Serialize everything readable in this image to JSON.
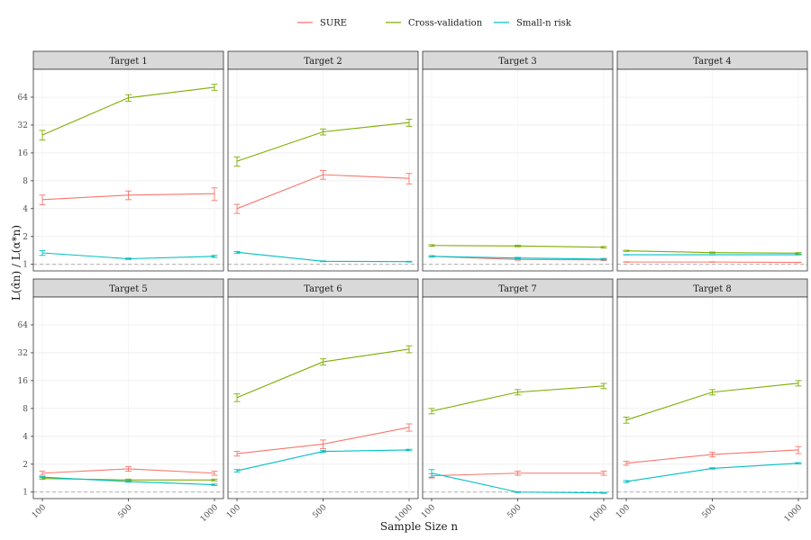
{
  "chart_data": {
    "type": "line",
    "facet_layout": "4 columns x 2 rows",
    "legend_position": "top",
    "xlabel": "Sample Size n",
    "ylabel": "L(α̂n) / L(α*n)",
    "y_scale": "log2",
    "ylim": [
      0.85,
      128
    ],
    "y_ticks": [
      1,
      2,
      4,
      8,
      16,
      32,
      64
    ],
    "y_tick_labels": [
      "1",
      "2",
      "4",
      "8",
      "16",
      "32",
      "64"
    ],
    "x_tick_labels": [
      "100",
      "500",
      "1000"
    ],
    "reference_line": 1,
    "series_names": [
      "SURE",
      "Cross-validation",
      "Small-n risk"
    ],
    "colors": {
      "SURE": "#F8766D",
      "Cross-validation": "#7CAE00",
      "Small-n risk": "#00BFC4"
    },
    "panels": [
      {
        "title": "Target 1",
        "x": [
          100,
          500,
          1000
        ],
        "series": [
          {
            "name": "SURE",
            "values": [
              5.0,
              5.6,
              5.8
            ],
            "err": [
              0.6,
              0.6,
              0.9
            ]
          },
          {
            "name": "Cross-validation",
            "values": [
              25,
              63,
              82
            ],
            "err": [
              3,
              5,
              6
            ]
          },
          {
            "name": "Small-n risk",
            "values": [
              1.33,
              1.15,
              1.22
            ],
            "err": [
              0.08,
              0.02,
              0.03
            ]
          }
        ]
      },
      {
        "title": "Target 2",
        "x": [
          100,
          500,
          1000
        ],
        "series": [
          {
            "name": "SURE",
            "values": [
              4.0,
              9.3,
              8.5
            ],
            "err": [
              0.45,
              1.0,
              1.1
            ]
          },
          {
            "name": "Cross-validation",
            "values": [
              13,
              27,
              34
            ],
            "err": [
              1.5,
              2,
              3
            ]
          },
          {
            "name": "Small-n risk",
            "values": [
              1.35,
              1.08,
              1.07
            ],
            "err": [
              0.03,
              0.01,
              0.01
            ]
          }
        ]
      },
      {
        "title": "Target 3",
        "x": [
          100,
          500,
          1000
        ],
        "series": [
          {
            "name": "SURE",
            "values": [
              1.22,
              1.13,
              1.12
            ],
            "err": [
              0.02,
              0.02,
              0.02
            ]
          },
          {
            "name": "Cross-validation",
            "values": [
              1.6,
              1.58,
              1.53
            ],
            "err": [
              0.03,
              0.03,
              0.03
            ]
          },
          {
            "name": "Small-n risk",
            "values": [
              1.22,
              1.17,
              1.14
            ],
            "err": [
              0.02,
              0.02,
              0.02
            ]
          }
        ]
      },
      {
        "title": "Target 4",
        "x": [
          100,
          500,
          1000
        ],
        "series": [
          {
            "name": "SURE",
            "values": [
              1.06,
              1.06,
              1.05
            ],
            "err": [
              0.005,
              0.005,
              0.005
            ]
          },
          {
            "name": "Cross-validation",
            "values": [
              1.4,
              1.34,
              1.32
            ],
            "err": [
              0.02,
              0.02,
              0.02
            ]
          },
          {
            "name": "Small-n risk",
            "values": [
              1.27,
              1.27,
              1.27
            ],
            "err": [
              0.005,
              0.005,
              0.005
            ]
          }
        ]
      },
      {
        "title": "Target 5",
        "x": [
          100,
          500,
          1000
        ],
        "series": [
          {
            "name": "SURE",
            "values": [
              1.6,
              1.78,
              1.6
            ],
            "err": [
              0.08,
              0.1,
              0.08
            ]
          },
          {
            "name": "Cross-validation",
            "values": [
              1.4,
              1.35,
              1.35
            ],
            "err": [
              0.03,
              0.03,
              0.03
            ]
          },
          {
            "name": "Small-n risk",
            "values": [
              1.45,
              1.3,
              1.2
            ],
            "err": [
              0.02,
              0.02,
              0.02
            ]
          }
        ]
      },
      {
        "title": "Target 6",
        "x": [
          100,
          500,
          1000
        ],
        "series": [
          {
            "name": "SURE",
            "values": [
              2.6,
              3.3,
              5.0
            ],
            "err": [
              0.15,
              0.35,
              0.45
            ]
          },
          {
            "name": "Cross-validation",
            "values": [
              10.5,
              25.5,
              35
            ],
            "err": [
              1.0,
              2.0,
              3.0
            ]
          },
          {
            "name": "Small-n risk",
            "values": [
              1.7,
              2.75,
              2.85
            ],
            "err": [
              0.05,
              0.08,
              0.05
            ]
          }
        ]
      },
      {
        "title": "Target 7",
        "x": [
          100,
          500,
          1000
        ],
        "series": [
          {
            "name": "SURE",
            "values": [
              1.5,
              1.6,
              1.6
            ],
            "err": [
              0.08,
              0.08,
              0.08
            ]
          },
          {
            "name": "Cross-validation",
            "values": [
              7.5,
              12,
              14
            ],
            "err": [
              0.5,
              0.8,
              0.9
            ]
          },
          {
            "name": "Small-n risk",
            "values": [
              1.6,
              1.0,
              0.98
            ],
            "err": [
              0.15,
              0.01,
              0.01
            ]
          }
        ]
      },
      {
        "title": "Target 8",
        "x": [
          100,
          500,
          1000
        ],
        "series": [
          {
            "name": "SURE",
            "values": [
              2.05,
              2.55,
              2.85
            ],
            "err": [
              0.1,
              0.15,
              0.25
            ]
          },
          {
            "name": "Cross-validation",
            "values": [
              6.0,
              12.0,
              15.0
            ],
            "err": [
              0.45,
              0.8,
              1.0
            ]
          },
          {
            "name": "Small-n risk",
            "values": [
              1.3,
              1.8,
              2.05
            ],
            "err": [
              0.03,
              0.03,
              0.03
            ]
          }
        ]
      }
    ]
  }
}
